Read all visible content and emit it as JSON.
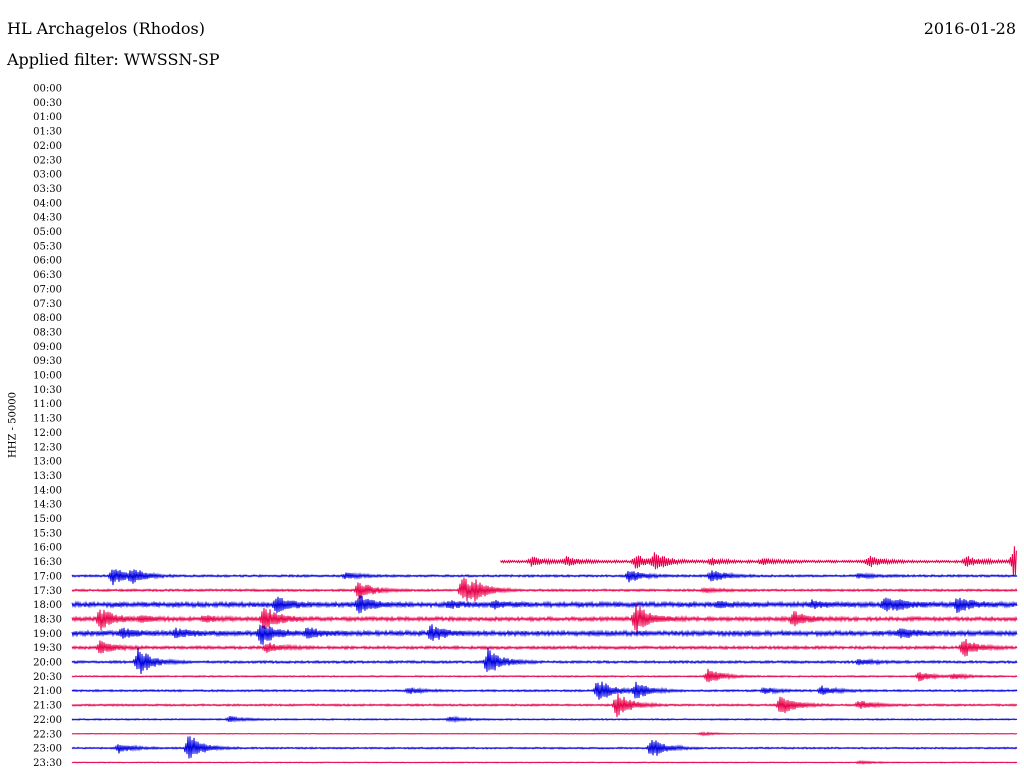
{
  "header": {
    "station": "HL Archagelos (Rhodos)",
    "date": "2016-01-28",
    "filter": "Applied filter: WWSSN-SP"
  },
  "chart_data": {
    "type": "line",
    "title": "HL Archagelos (Rhodos)",
    "date": "2016-01-28",
    "filter": "WWSSN-SP",
    "ylabel": "HHZ - 50000",
    "ytick_labels": [
      "00:00",
      "00:30",
      "01:00",
      "01:30",
      "02:00",
      "02:30",
      "03:00",
      "03:30",
      "04:00",
      "04:30",
      "05:00",
      "05:30",
      "06:00",
      "06:30",
      "07:00",
      "07:30",
      "08:00",
      "08:30",
      "09:00",
      "09:30",
      "10:00",
      "10:30",
      "11:00",
      "11:30",
      "12:00",
      "12:30",
      "13:00",
      "13:30",
      "14:00",
      "14:30",
      "15:00",
      "15:30",
      "16:00",
      "16:30",
      "17:00",
      "17:30",
      "18:00",
      "18:30",
      "19:00",
      "19:30",
      "20:00",
      "20:30",
      "21:00",
      "21:30",
      "22:00",
      "22:30",
      "23:00",
      "23:30"
    ],
    "x_unit": "minutes into trace line (0-30)",
    "colors": {
      "odd_trace": "#e8004a",
      "even_trace": "#0000e0"
    },
    "traces": [
      {
        "start": "16:30",
        "from_minute": 13.6,
        "noise": 0.5,
        "events": [
          [
            14.6,
            3
          ],
          [
            15.7,
            3
          ],
          [
            17.9,
            4.5
          ],
          [
            18.5,
            5
          ],
          [
            20.3,
            2
          ],
          [
            21.9,
            2
          ],
          [
            25.3,
            4
          ],
          [
            28.4,
            3.5
          ],
          [
            29.9,
            11
          ]
        ]
      },
      {
        "start": "17:00",
        "noise": 0.45,
        "events": [
          [
            1.3,
            6
          ],
          [
            1.9,
            4
          ],
          [
            8.7,
            2
          ],
          [
            17.7,
            4
          ],
          [
            20.3,
            4
          ],
          [
            25.0,
            1.5
          ]
        ]
      },
      {
        "start": "17:30",
        "noise": 0.45,
        "events": [
          [
            9.1,
            6
          ],
          [
            12.4,
            9
          ],
          [
            12.8,
            4
          ],
          [
            20.1,
            1.5
          ]
        ]
      },
      {
        "start": "18:00",
        "noise": 1.0,
        "events": [
          [
            6.5,
            5
          ],
          [
            9.1,
            6
          ],
          [
            12.0,
            2
          ],
          [
            13.4,
            2
          ],
          [
            20.5,
            2
          ],
          [
            23.5,
            2
          ],
          [
            25.8,
            4
          ],
          [
            26.2,
            2
          ],
          [
            28.1,
            5
          ]
        ]
      },
      {
        "start": "18:30",
        "noise": 0.8,
        "events": [
          [
            0.9,
            7
          ],
          [
            2.2,
            2
          ],
          [
            4.2,
            2
          ],
          [
            6.1,
            8
          ],
          [
            17.9,
            10
          ],
          [
            22.9,
            5
          ]
        ]
      },
      {
        "start": "19:00",
        "noise": 1.0,
        "events": [
          [
            1.6,
            3
          ],
          [
            3.3,
            3
          ],
          [
            6.0,
            7
          ],
          [
            7.5,
            4
          ],
          [
            11.4,
            5
          ],
          [
            26.3,
            3
          ]
        ]
      },
      {
        "start": "19:30",
        "noise": 0.6,
        "events": [
          [
            0.9,
            4
          ],
          [
            6.2,
            3
          ],
          [
            28.3,
            6
          ]
        ]
      },
      {
        "start": "20:00",
        "noise": 0.5,
        "events": [
          [
            2.1,
            9
          ],
          [
            13.2,
            9
          ],
          [
            25.0,
            2
          ]
        ]
      },
      {
        "start": "20:30",
        "noise": 0.3,
        "events": [
          [
            20.2,
            5
          ],
          [
            26.9,
            3
          ],
          [
            28.0,
            2
          ]
        ]
      },
      {
        "start": "21:00",
        "noise": 0.4,
        "events": [
          [
            10.7,
            2
          ],
          [
            16.7,
            8
          ],
          [
            17.9,
            6
          ],
          [
            22.0,
            2
          ],
          [
            23.8,
            3
          ]
        ]
      },
      {
        "start": "21:30",
        "noise": 0.4,
        "events": [
          [
            17.3,
            8
          ],
          [
            22.5,
            7
          ],
          [
            25.0,
            3
          ]
        ]
      },
      {
        "start": "22:00",
        "noise": 0.3,
        "events": [
          [
            5.0,
            2
          ],
          [
            12.0,
            1.5
          ]
        ]
      },
      {
        "start": "22:30",
        "noise": 0.15,
        "events": [
          [
            20.0,
            1
          ]
        ]
      },
      {
        "start": "23:00",
        "noise": 0.35,
        "events": [
          [
            1.5,
            3
          ],
          [
            3.7,
            9
          ],
          [
            18.4,
            7
          ]
        ]
      },
      {
        "start": "23:30",
        "noise": 0.2,
        "events": [
          [
            25.0,
            1
          ]
        ]
      }
    ]
  }
}
